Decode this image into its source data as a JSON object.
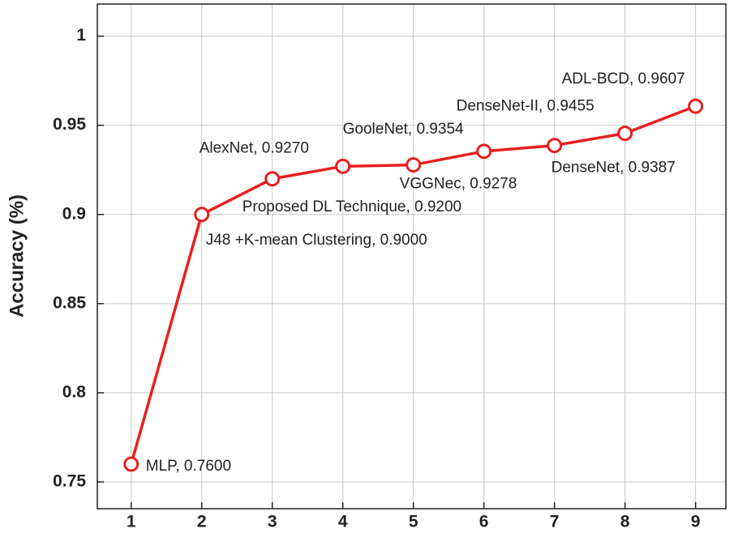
{
  "chart_data": {
    "type": "line",
    "y_label": "Accuracy (%)",
    "x": [
      1,
      2,
      3,
      4,
      5,
      6,
      7,
      8,
      9
    ],
    "series": [
      {
        "color": "#e8201f",
        "values": [
          0.76,
          0.9,
          0.92,
          0.927,
          0.9278,
          0.9354,
          0.9387,
          0.9455,
          0.9607
        ],
        "value_labels": [
          "MLP, 0.7600",
          "J48 +K-mean Clustering, 0.9000",
          "Proposed DL Technique, 0.9200",
          "AlexNet, 0.9270",
          "VGGNec, 0.9278",
          "GooleNet, 0.9354",
          "DenseNet, 0.9387",
          "DenseNet-II, 0.9455",
          "ADL-BCD, 0.9607"
        ]
      }
    ],
    "xlim": [
      0.52,
      9.43
    ],
    "ylim": [
      0.735,
      1.018
    ],
    "xticks": [
      1,
      2,
      3,
      4,
      5,
      6,
      7,
      8,
      9
    ],
    "yticks": [
      0.75,
      0.8,
      0.85,
      0.9,
      0.95,
      1
    ],
    "grid": true
  }
}
